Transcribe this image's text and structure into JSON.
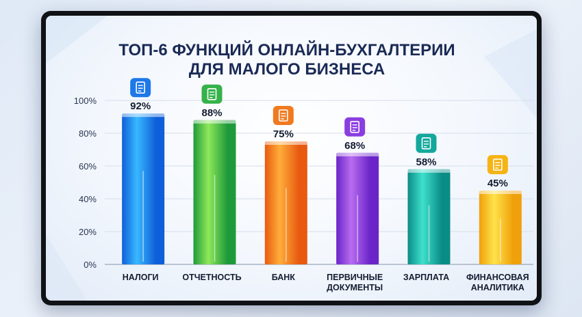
{
  "chart_data": {
    "type": "bar",
    "title_lines": [
      "ТОП-6 ФУНКЦИЙ ОНЛАЙН-БУХГАЛТЕРИИ",
      "ДЛЯ МАЛОГО БИЗНЕСА"
    ],
    "y_ticks": [
      "100%",
      "80%",
      "60%",
      "40%",
      "20%",
      "0%"
    ],
    "ylim": [
      0,
      100
    ],
    "grid": true,
    "categories": [
      {
        "label_lines": [
          "НАЛОГИ"
        ],
        "value": 92,
        "value_label": "92%",
        "icon": "tax-document-icon",
        "color_light": "#38b8ff",
        "color_dark": "#0f5fd8",
        "icon_bg": "#1e78e8"
      },
      {
        "label_lines": [
          "ОТЧЕТНОСТЬ"
        ],
        "value": 88,
        "value_label": "88%",
        "icon": "report-chart-icon",
        "color_light": "#8ee85a",
        "color_dark": "#1f9a3a",
        "icon_bg": "#36b24a"
      },
      {
        "label_lines": [
          "БАНК"
        ],
        "value": 75,
        "value_label": "75%",
        "icon": "bank-icon",
        "color_light": "#ffad3a",
        "color_dark": "#e85a10",
        "icon_bg": "#f07a20"
      },
      {
        "label_lines": [
          "ПЕРВИЧНЫЕ",
          "ДОКУМЕНТЫ"
        ],
        "value": 68,
        "value_label": "68%",
        "icon": "document-icon",
        "color_light": "#b86cf0",
        "color_dark": "#6a24c8",
        "icon_bg": "#8a3ee0"
      },
      {
        "label_lines": [
          "ЗАРПЛАТА"
        ],
        "value": 58,
        "value_label": "58%",
        "icon": "money-icon",
        "color_light": "#3ee0cc",
        "color_dark": "#0a8c86",
        "icon_bg": "#14a89c"
      },
      {
        "label_lines": [
          "ФИНАНСОВАЯ",
          "АНАЛИТИКА"
        ],
        "value": 45,
        "value_label": "45%",
        "icon": "analytics-chart-icon",
        "color_light": "#ffe24a",
        "color_dark": "#f0a00a",
        "icon_bg": "#f5b416"
      }
    ]
  }
}
